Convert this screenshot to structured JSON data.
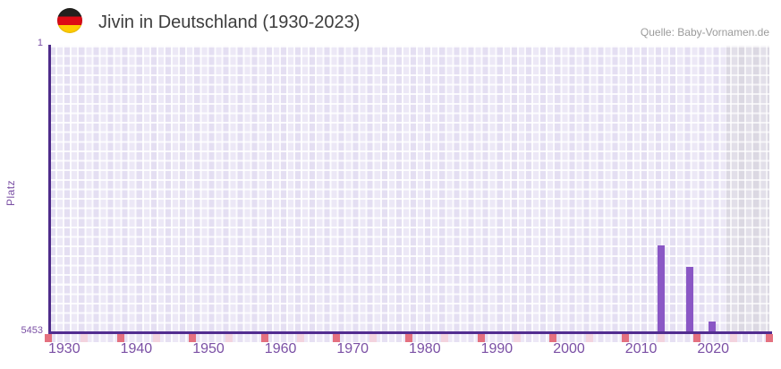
{
  "header": {
    "title": "Jivin in Deutschland (1930-2023)",
    "flag_icon": "german-flag",
    "source": "Quelle: Baby-Vornamen.de"
  },
  "y_axis": {
    "label": "Platz",
    "top_tick": "1",
    "bottom_tick": "5453"
  },
  "colors": {
    "bar": "#8a57c5",
    "axis_line": "#4e2b8a",
    "tick_label": "#7b50a5",
    "decade_marker": "#e4707f",
    "half_decade_marker": "#f3d3de",
    "plot_background": "#ece8f6",
    "future_zone_background": "#e2dfe9",
    "title_text": "#3d3d3d",
    "source_text": "#9b9b9b"
  },
  "chart_data": {
    "type": "bar",
    "title": "Jivin in Deutschland (1930-2023)",
    "ylabel": "Platz",
    "xlabel": "",
    "grid": true,
    "legend": false,
    "y_axis": {
      "min": 1,
      "max": 5453,
      "inverted": true,
      "tick_labels": [
        "1",
        "5453"
      ]
    },
    "x_axis": {
      "start_year": 1930,
      "end_year": 2023,
      "tick_years": [
        1930,
        1940,
        1950,
        1960,
        1970,
        1980,
        1990,
        2000,
        2010,
        2020
      ]
    },
    "bars": [
      {
        "year": 2015,
        "rank": 3810
      },
      {
        "year": 2019,
        "rank": 4220
      },
      {
        "year": 2022,
        "rank": 5260
      }
    ],
    "decade_marker_years": [
      1930,
      1940,
      1950,
      1960,
      1970,
      1980,
      1990,
      2000,
      2010,
      2020,
      2030
    ],
    "half_decade_marker_years": [
      1935,
      1945,
      1955,
      1965,
      1975,
      1985,
      1995,
      2005,
      2015,
      2025
    ],
    "future_zone_start_year": 2024
  }
}
